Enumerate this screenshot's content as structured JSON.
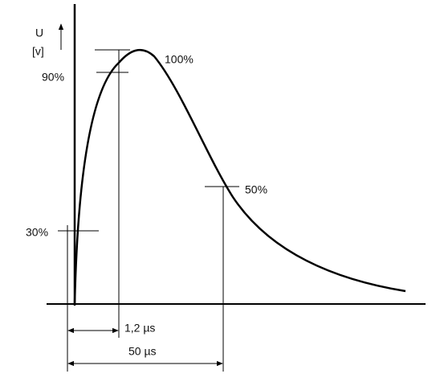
{
  "axis": {
    "y_symbol": "U",
    "y_unit": "[v]"
  },
  "levels": {
    "p100": "100%",
    "p90": "90%",
    "p50": "50%",
    "p30": "30%"
  },
  "times": {
    "front": "1,2 µs",
    "tail": "50 µs"
  }
}
